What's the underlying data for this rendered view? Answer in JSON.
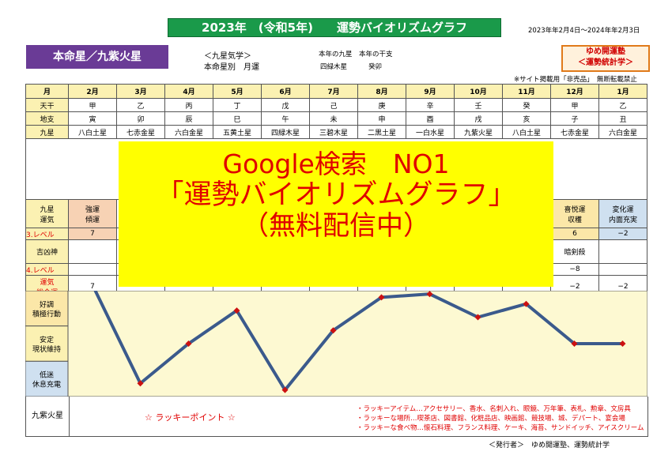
{
  "header": {
    "title": "2023年　(令和5年)　　運勢バイオリズムグラフ",
    "period": "2023年年2月4日～2024年年2月3日",
    "honmei": "本命星／九紫火星",
    "kigaku_line1": "＜九星気学＞",
    "kigaku_line2": "本命星別　月運",
    "year_kyusei_label": "本年の九星",
    "year_kyusei_value": "四緑木星",
    "year_kanshi_label": "本年の干支",
    "year_kanshi_value": "癸卯",
    "yume_line1": "ゆめ開運塾",
    "yume_line2": "＜運勢統計学＞",
    "notice": "※サイト掲載用「非売品」　無断転載禁止"
  },
  "table": {
    "month_label": "月",
    "months": [
      "2月",
      "3月",
      "4月",
      "5月",
      "6月",
      "7月",
      "8月",
      "9月",
      "10月",
      "11月",
      "12月",
      "1月"
    ],
    "tenkan_label": "天干",
    "tenkan": [
      "甲",
      "乙",
      "丙",
      "丁",
      "戊",
      "己",
      "庚",
      "辛",
      "壬",
      "癸",
      "甲",
      "乙"
    ],
    "chishi_label": "地支",
    "chishi": [
      "寅",
      "卯",
      "辰",
      "巳",
      "午",
      "未",
      "申",
      "酉",
      "戌",
      "亥",
      "子",
      "丑"
    ],
    "kyusei_label": "九星",
    "kyusei": [
      "八白土星",
      "七赤金星",
      "六白金星",
      "五黄土星",
      "四緑木星",
      "三碧木星",
      "二黒土星",
      "一白水星",
      "九紫火星",
      "八白土星",
      "七赤金星",
      "六白金星"
    ],
    "unki_label": "九星\n運気",
    "unki_visible": [
      {
        "col": 0,
        "l1": "強運",
        "l2": "傾運"
      },
      {
        "col": 10,
        "l1": "喜悦運",
        "l2": "収穫"
      },
      {
        "col": 11,
        "l1": "変化運",
        "l2": "内面充実"
      }
    ],
    "level3_label": "3.レベル",
    "level3_visible": [
      {
        "col": 0,
        "v": "7"
      },
      {
        "col": 10,
        "v": "6"
      },
      {
        "col": 11,
        "v": "−2"
      }
    ],
    "kisshin_label": "吉凶神",
    "kisshin_visible": [
      {
        "col": 10,
        "v": "暗剣殺"
      }
    ],
    "level4_label": "4.レベル",
    "level4_visible": [
      {
        "col": 10,
        "v": "−8"
      }
    ],
    "sougou_label": "運気\n総合運",
    "sougou_visible": [
      {
        "col": 0,
        "v": "7"
      },
      {
        "col": 10,
        "v": "−2"
      },
      {
        "col": 11,
        "v": "−2"
      }
    ]
  },
  "chart_data": {
    "type": "line",
    "categories": [
      "2月",
      "3月",
      "4月",
      "5月",
      "6月",
      "7月",
      "8月",
      "9月",
      "10月",
      "11月",
      "12月",
      "1月"
    ],
    "bands": [
      "好調\n積極行動",
      "安定\n現状維持",
      "低迷\n休息充電"
    ],
    "series": [
      {
        "values": [
          7,
          -8,
          -2,
          3,
          -9,
          0,
          5,
          5.5,
          2,
          4,
          -2,
          -2
        ]
      }
    ],
    "ylim": [
      -10,
      6
    ],
    "color": "#3b5a8c",
    "marker_color": "#cc1111"
  },
  "bottom": {
    "name": "九紫火星",
    "lucky_title": "☆ ラッキーポイント ☆",
    "items": [
      "・ラッキーアイテム…アクセサリー、香水、名刺入れ、眼鏡、万年筆、表札、勲章、文房具",
      "・ラッキーな場所…喫茶店、図書館、化粧品店、映画館、競技場、城、デパート、宴会場",
      "・ラッキーな食べ物…懐石料理、フランス料理、ケーキ、海苔、サンドイッチ、アイスクリーム"
    ],
    "publisher": "＜発行者＞　ゆめ開運塾、運勢統計学"
  },
  "overlay": {
    "line1": "Google検索　NO1",
    "line2": "「運勢バイオリズムグラフ」",
    "line3": "（無料配信中）"
  }
}
